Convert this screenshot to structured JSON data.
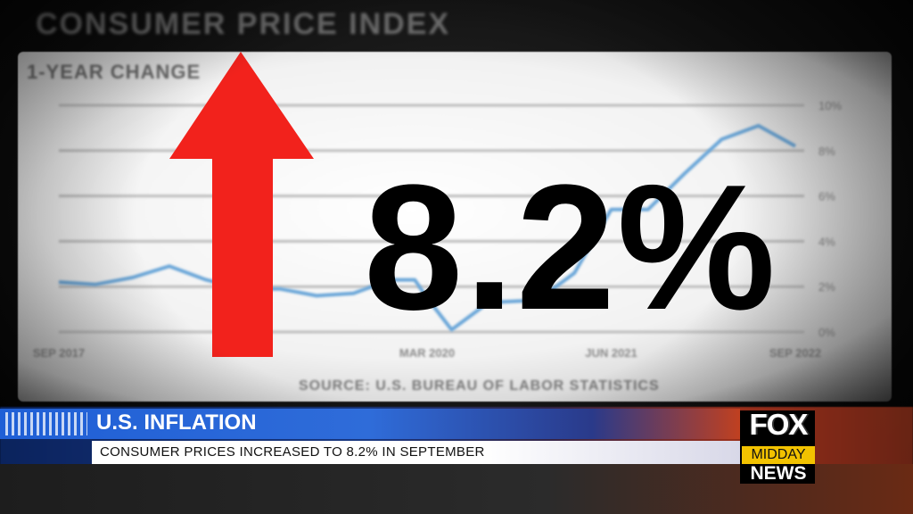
{
  "screen": {
    "cpi_title": "CONSUMER PRICE INDEX",
    "chart_subtitle": "1-YEAR CHANGE",
    "source": "SOURCE: U.S. BUREAU OF LABOR STATISTICS",
    "big_value": "8.2%"
  },
  "chart_data": {
    "type": "line",
    "title": "CONSUMER PRICE INDEX",
    "subtitle": "1-YEAR CHANGE",
    "x_tick_labels": [
      "SEP 2017",
      "MAR 2020",
      "JUN 2021",
      "SEP 2022"
    ],
    "y_tick_labels": [
      "10%",
      "8%",
      "6%",
      "4%",
      "2%",
      "0%"
    ],
    "ylim": [
      0,
      10
    ],
    "grid": true,
    "series": [
      {
        "x": [
          "2017-09",
          "2017-12",
          "2018-03",
          "2018-06",
          "2018-09",
          "2018-12",
          "2019-03",
          "2019-06",
          "2019-09",
          "2019-12",
          "2020-02",
          "2020-03",
          "2020-05",
          "2020-08",
          "2020-12",
          "2021-03",
          "2021-06",
          "2021-09",
          "2021-12",
          "2022-03",
          "2022-06",
          "2022-09"
        ],
        "values": [
          2.2,
          2.1,
          2.4,
          2.9,
          2.3,
          1.9,
          1.9,
          1.6,
          1.7,
          2.3,
          2.3,
          1.5,
          0.1,
          1.3,
          1.4,
          2.6,
          5.4,
          5.4,
          7.0,
          8.5,
          9.1,
          8.2
        ]
      }
    ]
  },
  "lower_third": {
    "headline": "U.S. INFLATION",
    "ticker": "CONSUMER PRICES INCREASED TO 8.2% IN SEPTEMBER"
  },
  "logo": {
    "line1": "FOX",
    "line2": "MIDDAY",
    "line3": "NEWS"
  },
  "colors": {
    "arrow": "#f2221c",
    "line": "#6aa6d8",
    "headline_bar": "#1f5fd6",
    "logo_yellow": "#f2c200"
  },
  "icons": {
    "arrow": "up-arrow-icon"
  }
}
